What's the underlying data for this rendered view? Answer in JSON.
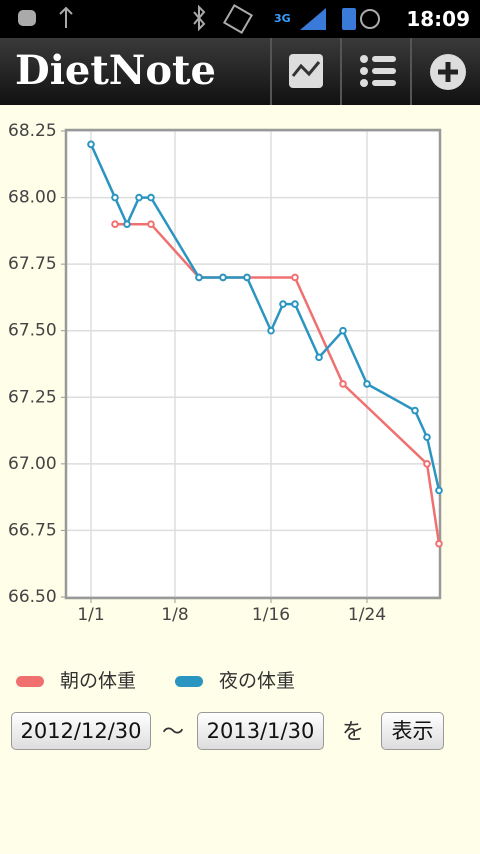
{
  "status_bar": {
    "time": "18:09"
  },
  "app_bar": {
    "title": "DietNote"
  },
  "chart_data": {
    "type": "line",
    "xlim": [
      -1,
      30
    ],
    "xticks": [
      {
        "value": 1,
        "label": "1/1"
      },
      {
        "value": 8,
        "label": "1/8"
      },
      {
        "value": 16,
        "label": "1/16"
      },
      {
        "value": 24,
        "label": "1/24"
      }
    ],
    "ylim": [
      66.5,
      68.25
    ],
    "yticks": [
      {
        "value": 66.5,
        "label": "66.50"
      },
      66.75,
      {
        "value": 67.0,
        "label": "67.00"
      },
      67.25,
      {
        "value": 67.5,
        "label": "67.50"
      },
      67.75,
      {
        "value": 68.0,
        "label": "68.00"
      },
      68.25
    ],
    "grid": true,
    "series": [
      {
        "name": "朝の体重",
        "color": "#f07070",
        "x": [
          3,
          6,
          10,
          12,
          14,
          18,
          22,
          29,
          30
        ],
        "values": [
          67.9,
          67.9,
          67.7,
          67.7,
          67.7,
          67.7,
          67.3,
          67.0,
          66.7
        ]
      },
      {
        "name": "夜の体重",
        "color": "#2a95c0",
        "x": [
          1,
          3,
          4,
          5,
          6,
          10,
          12,
          14,
          16,
          17,
          18,
          20,
          22,
          24,
          28,
          29,
          30
        ],
        "values": [
          68.2,
          68.0,
          67.9,
          68.0,
          68.0,
          67.7,
          67.7,
          67.7,
          67.5,
          67.6,
          67.6,
          67.4,
          67.5,
          67.3,
          67.2,
          67.1,
          66.9
        ]
      }
    ]
  },
  "controls": {
    "from": "2012/12/30",
    "separator": "〜",
    "to": "2013/1/30",
    "particle": "を",
    "button": "表示"
  }
}
